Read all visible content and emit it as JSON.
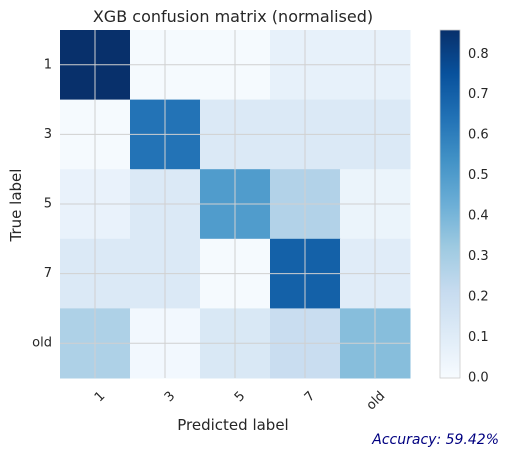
{
  "chart_data": {
    "type": "heatmap",
    "title": "XGB confusion matrix (normalised)",
    "xlabel": "Predicted label",
    "ylabel": "True label",
    "x_categories": [
      "1",
      "3",
      "5",
      "7",
      "old"
    ],
    "y_categories": [
      "1",
      "3",
      "5",
      "7",
      "old"
    ],
    "values": [
      [
        0.86,
        0.01,
        0.01,
        0.07,
        0.07
      ],
      [
        0.01,
        0.64,
        0.12,
        0.12,
        0.12
      ],
      [
        0.06,
        0.12,
        0.5,
        0.27,
        0.05
      ],
      [
        0.12,
        0.12,
        0.01,
        0.7,
        0.1
      ],
      [
        0.28,
        0.02,
        0.13,
        0.2,
        0.37
      ]
    ],
    "colorbar": {
      "range": [
        0.0,
        0.86
      ],
      "ticks": [
        "0.0",
        "0.1",
        "0.2",
        "0.3",
        "0.4",
        "0.5",
        "0.6",
        "0.7",
        "0.8"
      ],
      "colormap": "Blues"
    },
    "grid": true,
    "x_tick_rotation": "45 degrees"
  },
  "annotation": {
    "accuracy_text": "Accuracy: 59.42%",
    "color": "#000080"
  }
}
